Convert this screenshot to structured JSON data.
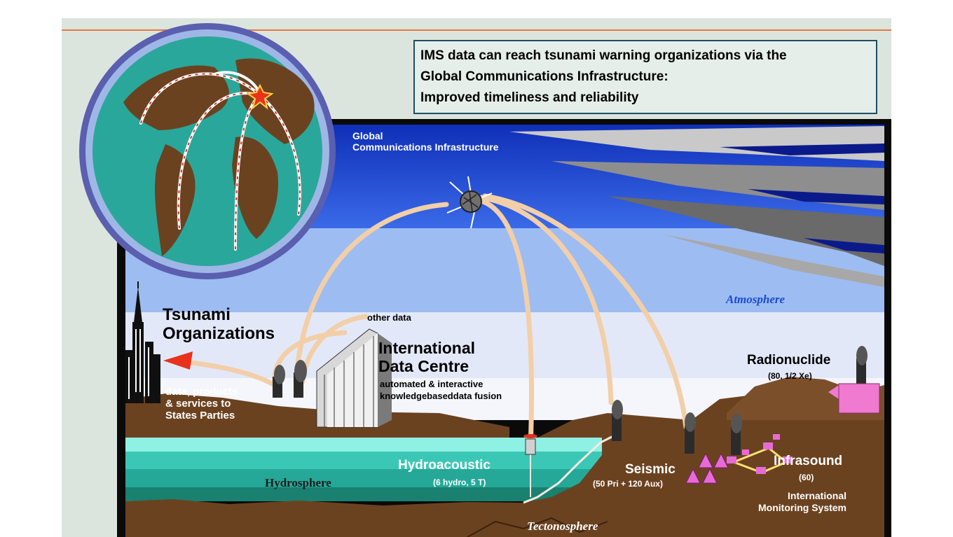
{
  "banner": {
    "line1": "IMS data can reach tsunami warning organizations via the",
    "line2": "Global Communications Infrastructure:",
    "line3": "Improved timeliness and reliability"
  },
  "layers": {
    "gci_line1": "Global",
    "gci_line2": "Communications Infrastructure",
    "atmosphere": "Atmosphere",
    "hydrosphere": "Hydrosphere",
    "tectonosphere": "Tectonosphere"
  },
  "tsunami": {
    "line1": "Tsunami",
    "line2": "Organizations"
  },
  "other_data": "other data",
  "services": {
    "line1": "data, products",
    "line2": "& services to",
    "line3": "States Parties"
  },
  "idc": {
    "line1": "International",
    "line2": "Data Centre",
    "sub1": "automated & interactive",
    "sub2": "knowledgebaseddata fusion"
  },
  "radionuclide": {
    "name": "Radionuclide",
    "count": "(80, 1/2 Xe)"
  },
  "hydroacoustic": {
    "name": "Hydroacoustic",
    "count": "(6 hydro, 5 T)"
  },
  "seismic": {
    "name": "Seismic",
    "count": "(50 Pri + 120 Aux)"
  },
  "infrasound": {
    "name": "Infrasound",
    "count": "(60)"
  },
  "ims": {
    "line1": "International",
    "line2": "Monitoring System"
  },
  "colors": {
    "sky_dark": "#1e48d8",
    "sky_mid": "#5e8ef0",
    "sky_light": "#a6c3f4",
    "ground": "#6b4220",
    "sea": "#2fb6a6",
    "link": "#f2cfa8",
    "globe_ring": "#5a5fb0"
  }
}
